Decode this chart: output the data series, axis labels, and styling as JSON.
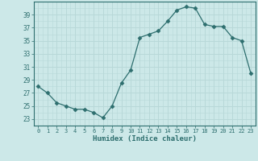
{
  "x": [
    0,
    1,
    2,
    3,
    4,
    5,
    6,
    7,
    8,
    9,
    10,
    11,
    12,
    13,
    14,
    15,
    16,
    17,
    18,
    19,
    20,
    21,
    22,
    23
  ],
  "y": [
    28.0,
    27.0,
    25.5,
    25.0,
    24.5,
    24.5,
    24.0,
    23.2,
    25.0,
    28.5,
    30.5,
    35.5,
    36.0,
    36.5,
    38.0,
    39.7,
    40.2,
    40.0,
    37.5,
    37.2,
    37.2,
    35.5,
    35.0,
    30.0
  ],
  "line_color": "#2d6e6e",
  "marker": "D",
  "marker_size": 2.5,
  "background_color": "#cce8e8",
  "grid_major_color": "#b8d8d8",
  "grid_minor_color": "#d0e8e8",
  "xlabel": "Humidex (Indice chaleur)",
  "ylim": [
    22,
    41
  ],
  "xlim": [
    -0.5,
    23.5
  ],
  "yticks": [
    23,
    25,
    27,
    29,
    31,
    33,
    35,
    37,
    39
  ],
  "xticks": [
    0,
    1,
    2,
    3,
    4,
    5,
    6,
    7,
    8,
    9,
    10,
    11,
    12,
    13,
    14,
    15,
    16,
    17,
    18,
    19,
    20,
    21,
    22,
    23
  ],
  "xtick_labels": [
    "0",
    "1",
    "2",
    "3",
    "4",
    "5",
    "6",
    "7",
    "8",
    "9",
    "10",
    "11",
    "12",
    "13",
    "14",
    "15",
    "16",
    "17",
    "18",
    "19",
    "20",
    "21",
    "22",
    "23"
  ]
}
